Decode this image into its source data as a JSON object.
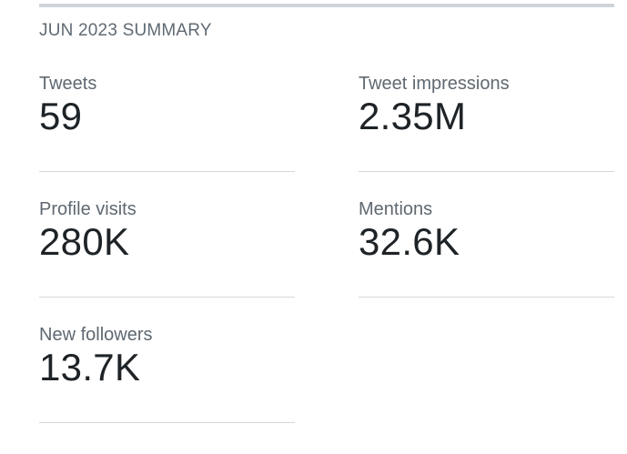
{
  "summary": {
    "title": "JUN 2023 SUMMARY",
    "stats": [
      {
        "label": "Tweets",
        "value": "59"
      },
      {
        "label": "Tweet impressions",
        "value": "2.35M"
      },
      {
        "label": "Profile visits",
        "value": "280K"
      },
      {
        "label": "Mentions",
        "value": "32.6K"
      },
      {
        "label": "New followers",
        "value": "13.7K"
      }
    ]
  }
}
